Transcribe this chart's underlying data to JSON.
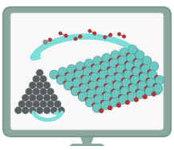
{
  "monitor_outer_color": "#8aA8A0",
  "teal_color": "#6EC6C0",
  "teal_dark": "#308888",
  "dark_gray_ball": "#585e60",
  "dark_gray_edge": "#888888",
  "red_color": "#C03030",
  "red_edge": "#802020",
  "arrow_color": "#7DDDD8",
  "arrow_color2": "#7DDDD8",
  "screen_bg": "#f8f8f8",
  "molecule_gray": "#909090"
}
